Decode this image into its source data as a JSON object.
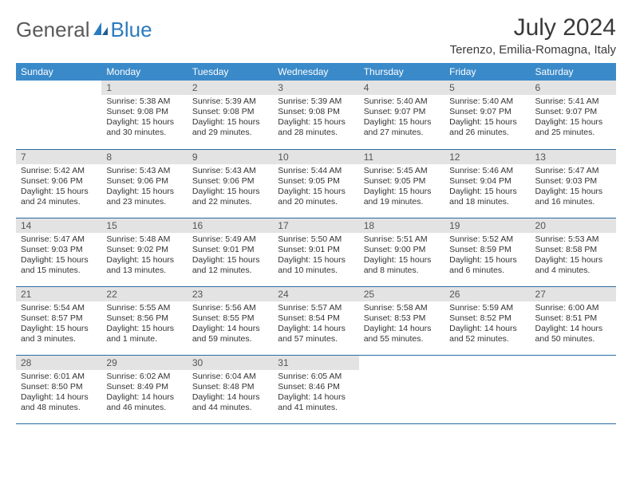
{
  "brand": {
    "part1": "General",
    "part2": "Blue"
  },
  "title": "July 2024",
  "location": "Terenzo, Emilia-Romagna, Italy",
  "colors": {
    "header_bg": "#3a8ac9",
    "header_text": "#ffffff",
    "daynum_bg": "#e3e3e3",
    "row_divider": "#2b6aa0",
    "brand_gray": "#5a5a5a",
    "brand_blue": "#2b7bbf"
  },
  "weekdays": [
    "Sunday",
    "Monday",
    "Tuesday",
    "Wednesday",
    "Thursday",
    "Friday",
    "Saturday"
  ],
  "weeks": [
    [
      {
        "n": "",
        "l1": "",
        "l2": "",
        "l3": "",
        "l4": ""
      },
      {
        "n": "1",
        "l1": "Sunrise: 5:38 AM",
        "l2": "Sunset: 9:08 PM",
        "l3": "Daylight: 15 hours",
        "l4": "and 30 minutes."
      },
      {
        "n": "2",
        "l1": "Sunrise: 5:39 AM",
        "l2": "Sunset: 9:08 PM",
        "l3": "Daylight: 15 hours",
        "l4": "and 29 minutes."
      },
      {
        "n": "3",
        "l1": "Sunrise: 5:39 AM",
        "l2": "Sunset: 9:08 PM",
        "l3": "Daylight: 15 hours",
        "l4": "and 28 minutes."
      },
      {
        "n": "4",
        "l1": "Sunrise: 5:40 AM",
        "l2": "Sunset: 9:07 PM",
        "l3": "Daylight: 15 hours",
        "l4": "and 27 minutes."
      },
      {
        "n": "5",
        "l1": "Sunrise: 5:40 AM",
        "l2": "Sunset: 9:07 PM",
        "l3": "Daylight: 15 hours",
        "l4": "and 26 minutes."
      },
      {
        "n": "6",
        "l1": "Sunrise: 5:41 AM",
        "l2": "Sunset: 9:07 PM",
        "l3": "Daylight: 15 hours",
        "l4": "and 25 minutes."
      }
    ],
    [
      {
        "n": "7",
        "l1": "Sunrise: 5:42 AM",
        "l2": "Sunset: 9:06 PM",
        "l3": "Daylight: 15 hours",
        "l4": "and 24 minutes."
      },
      {
        "n": "8",
        "l1": "Sunrise: 5:43 AM",
        "l2": "Sunset: 9:06 PM",
        "l3": "Daylight: 15 hours",
        "l4": "and 23 minutes."
      },
      {
        "n": "9",
        "l1": "Sunrise: 5:43 AM",
        "l2": "Sunset: 9:06 PM",
        "l3": "Daylight: 15 hours",
        "l4": "and 22 minutes."
      },
      {
        "n": "10",
        "l1": "Sunrise: 5:44 AM",
        "l2": "Sunset: 9:05 PM",
        "l3": "Daylight: 15 hours",
        "l4": "and 20 minutes."
      },
      {
        "n": "11",
        "l1": "Sunrise: 5:45 AM",
        "l2": "Sunset: 9:05 PM",
        "l3": "Daylight: 15 hours",
        "l4": "and 19 minutes."
      },
      {
        "n": "12",
        "l1": "Sunrise: 5:46 AM",
        "l2": "Sunset: 9:04 PM",
        "l3": "Daylight: 15 hours",
        "l4": "and 18 minutes."
      },
      {
        "n": "13",
        "l1": "Sunrise: 5:47 AM",
        "l2": "Sunset: 9:03 PM",
        "l3": "Daylight: 15 hours",
        "l4": "and 16 minutes."
      }
    ],
    [
      {
        "n": "14",
        "l1": "Sunrise: 5:47 AM",
        "l2": "Sunset: 9:03 PM",
        "l3": "Daylight: 15 hours",
        "l4": "and 15 minutes."
      },
      {
        "n": "15",
        "l1": "Sunrise: 5:48 AM",
        "l2": "Sunset: 9:02 PM",
        "l3": "Daylight: 15 hours",
        "l4": "and 13 minutes."
      },
      {
        "n": "16",
        "l1": "Sunrise: 5:49 AM",
        "l2": "Sunset: 9:01 PM",
        "l3": "Daylight: 15 hours",
        "l4": "and 12 minutes."
      },
      {
        "n": "17",
        "l1": "Sunrise: 5:50 AM",
        "l2": "Sunset: 9:01 PM",
        "l3": "Daylight: 15 hours",
        "l4": "and 10 minutes."
      },
      {
        "n": "18",
        "l1": "Sunrise: 5:51 AM",
        "l2": "Sunset: 9:00 PM",
        "l3": "Daylight: 15 hours",
        "l4": "and 8 minutes."
      },
      {
        "n": "19",
        "l1": "Sunrise: 5:52 AM",
        "l2": "Sunset: 8:59 PM",
        "l3": "Daylight: 15 hours",
        "l4": "and 6 minutes."
      },
      {
        "n": "20",
        "l1": "Sunrise: 5:53 AM",
        "l2": "Sunset: 8:58 PM",
        "l3": "Daylight: 15 hours",
        "l4": "and 4 minutes."
      }
    ],
    [
      {
        "n": "21",
        "l1": "Sunrise: 5:54 AM",
        "l2": "Sunset: 8:57 PM",
        "l3": "Daylight: 15 hours",
        "l4": "and 3 minutes."
      },
      {
        "n": "22",
        "l1": "Sunrise: 5:55 AM",
        "l2": "Sunset: 8:56 PM",
        "l3": "Daylight: 15 hours",
        "l4": "and 1 minute."
      },
      {
        "n": "23",
        "l1": "Sunrise: 5:56 AM",
        "l2": "Sunset: 8:55 PM",
        "l3": "Daylight: 14 hours",
        "l4": "and 59 minutes."
      },
      {
        "n": "24",
        "l1": "Sunrise: 5:57 AM",
        "l2": "Sunset: 8:54 PM",
        "l3": "Daylight: 14 hours",
        "l4": "and 57 minutes."
      },
      {
        "n": "25",
        "l1": "Sunrise: 5:58 AM",
        "l2": "Sunset: 8:53 PM",
        "l3": "Daylight: 14 hours",
        "l4": "and 55 minutes."
      },
      {
        "n": "26",
        "l1": "Sunrise: 5:59 AM",
        "l2": "Sunset: 8:52 PM",
        "l3": "Daylight: 14 hours",
        "l4": "and 52 minutes."
      },
      {
        "n": "27",
        "l1": "Sunrise: 6:00 AM",
        "l2": "Sunset: 8:51 PM",
        "l3": "Daylight: 14 hours",
        "l4": "and 50 minutes."
      }
    ],
    [
      {
        "n": "28",
        "l1": "Sunrise: 6:01 AM",
        "l2": "Sunset: 8:50 PM",
        "l3": "Daylight: 14 hours",
        "l4": "and 48 minutes."
      },
      {
        "n": "29",
        "l1": "Sunrise: 6:02 AM",
        "l2": "Sunset: 8:49 PM",
        "l3": "Daylight: 14 hours",
        "l4": "and 46 minutes."
      },
      {
        "n": "30",
        "l1": "Sunrise: 6:04 AM",
        "l2": "Sunset: 8:48 PM",
        "l3": "Daylight: 14 hours",
        "l4": "and 44 minutes."
      },
      {
        "n": "31",
        "l1": "Sunrise: 6:05 AM",
        "l2": "Sunset: 8:46 PM",
        "l3": "Daylight: 14 hours",
        "l4": "and 41 minutes."
      },
      {
        "n": "",
        "l1": "",
        "l2": "",
        "l3": "",
        "l4": ""
      },
      {
        "n": "",
        "l1": "",
        "l2": "",
        "l3": "",
        "l4": ""
      },
      {
        "n": "",
        "l1": "",
        "l2": "",
        "l3": "",
        "l4": ""
      }
    ]
  ]
}
